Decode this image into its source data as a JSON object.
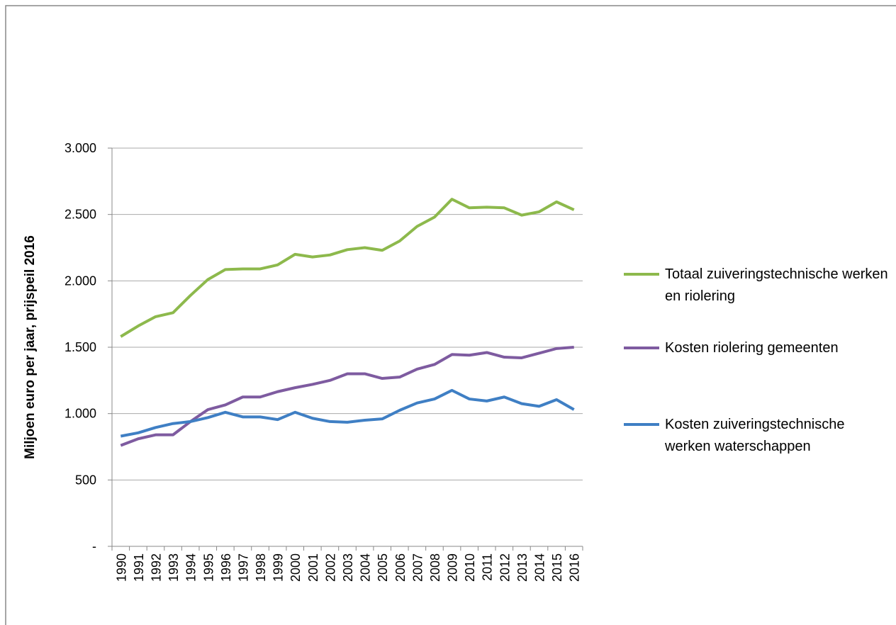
{
  "chart_data": {
    "type": "line",
    "ylabel": "Miljoen euro per jaar, prijspeil 2016",
    "categories": [
      "1990",
      "1991",
      "1992",
      "1993",
      "1994",
      "1995",
      "1996",
      "1997",
      "1998",
      "1999",
      "2000",
      "2001",
      "2002",
      "2003",
      "2004",
      "2005",
      "2006",
      "2007",
      "2008",
      "2009",
      "2010",
      "2011",
      "2012",
      "2013",
      "2014",
      "2015",
      "2016"
    ],
    "series": [
      {
        "name": "Totaal zuiveringstechnische werken en riolering",
        "color": "#8db94c",
        "values": [
          1580,
          1660,
          1730,
          1760,
          1890,
          2010,
          2085,
          2090,
          2090,
          2120,
          2200,
          2180,
          2195,
          2235,
          2250,
          2230,
          2300,
          2410,
          2480,
          2615,
          2550,
          2555,
          2550,
          2495,
          2520,
          2595,
          2535
        ]
      },
      {
        "name": "Kosten riolering gemeenten",
        "color": "#7e5ba0",
        "values": [
          760,
          810,
          840,
          840,
          940,
          1030,
          1065,
          1125,
          1125,
          1165,
          1195,
          1220,
          1250,
          1300,
          1300,
          1265,
          1275,
          1335,
          1370,
          1445,
          1440,
          1460,
          1425,
          1420,
          1455,
          1490,
          1500
        ]
      },
      {
        "name": "Kosten zuiveringstechnische werken waterschappen",
        "color": "#3f7fc4",
        "values": [
          830,
          855,
          895,
          925,
          940,
          970,
          1010,
          975,
          975,
          955,
          1010,
          965,
          940,
          935,
          950,
          960,
          1025,
          1080,
          1110,
          1175,
          1110,
          1095,
          1125,
          1075,
          1055,
          1105,
          1030
        ]
      }
    ],
    "ylim": [
      0,
      3000
    ],
    "yticks": [
      {
        "value": 0,
        "label": "-"
      },
      500,
      {
        "value": 1000,
        "label": "1.000"
      },
      {
        "value": 1500,
        "label": "1.500"
      },
      {
        "value": 2000,
        "label": "2.000"
      },
      {
        "value": 2500,
        "label": "2.500"
      },
      {
        "value": 3000,
        "label": "3.000"
      }
    ],
    "grid": true,
    "legend": "right"
  }
}
